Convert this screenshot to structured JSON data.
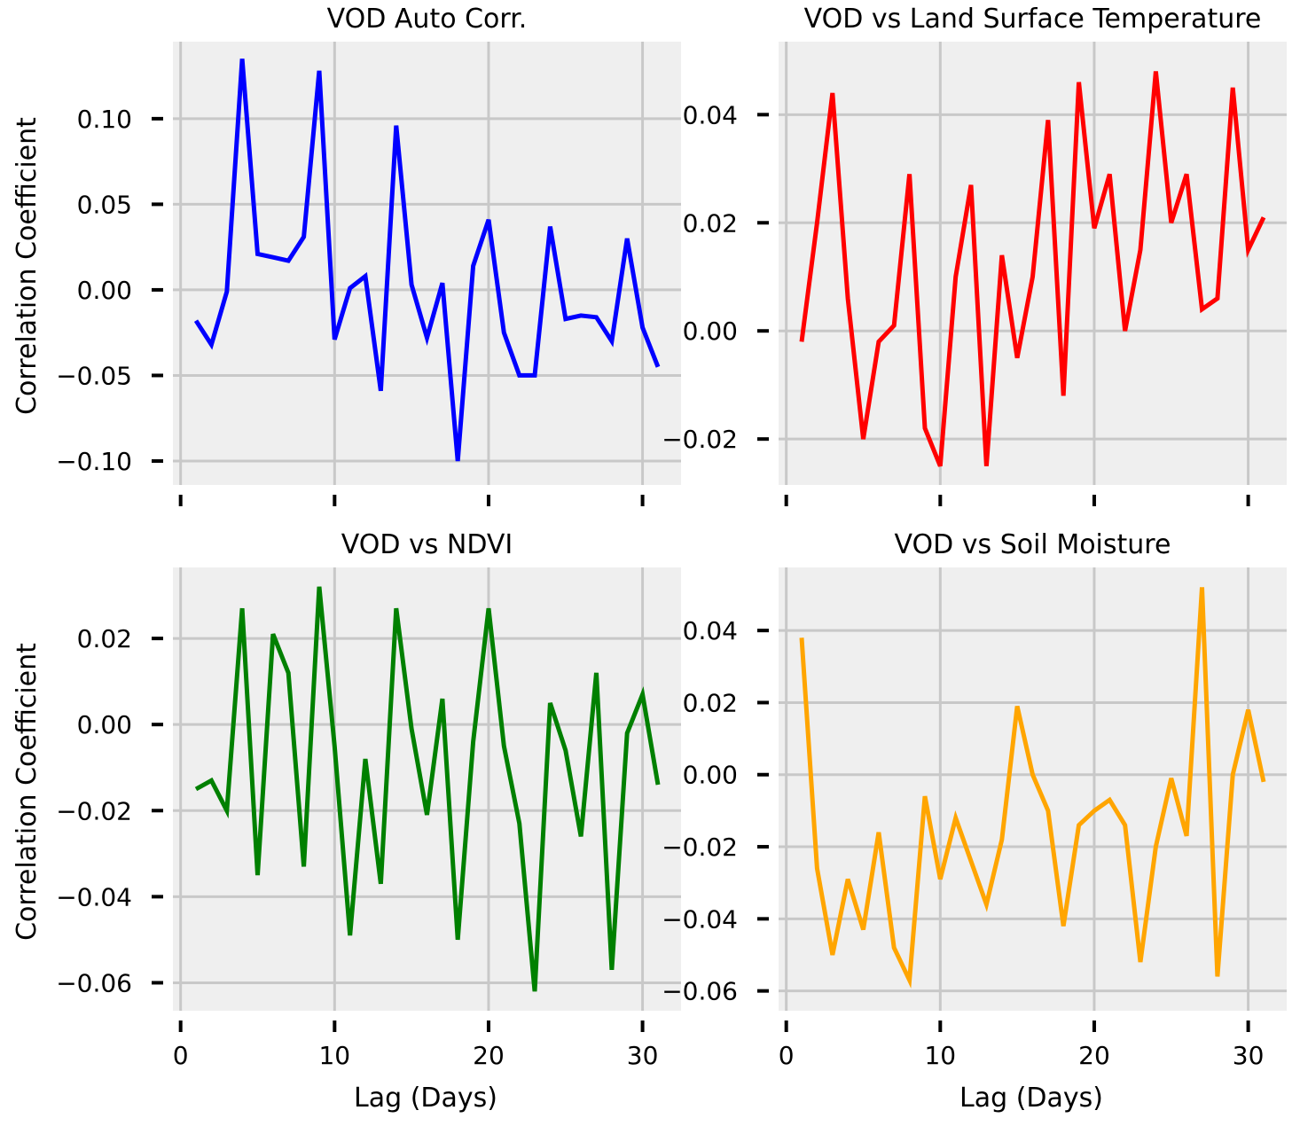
{
  "xlabel": "Lag (Days)",
  "ylabel": "Correlation Coefficient",
  "chart_data": [
    {
      "type": "line",
      "title": "VOD Auto Corr.",
      "xlabel": "",
      "ylabel": "Correlation Coefficient",
      "xlim": [
        -0.5,
        32.5
      ],
      "ylim": [
        -0.114,
        0.145
      ],
      "xticks": [
        0,
        10,
        20,
        30
      ],
      "show_xtick_labels": false,
      "yticks": [
        -0.1,
        -0.05,
        0.0,
        0.05,
        0.1
      ],
      "ytick_labels": [
        "−0.10",
        "−0.05",
        "0.00",
        "0.05",
        "0.10"
      ],
      "grid": true,
      "color": "#0000ff",
      "x": [
        1,
        2,
        3,
        4,
        5,
        6,
        7,
        8,
        9,
        10,
        11,
        12,
        13,
        14,
        15,
        16,
        17,
        18,
        19,
        20,
        21,
        22,
        23,
        24,
        25,
        26,
        27,
        28,
        29,
        30,
        31
      ],
      "values": [
        -0.018,
        -0.032,
        -0.001,
        0.135,
        0.021,
        0.019,
        0.017,
        0.031,
        0.128,
        -0.029,
        0.001,
        0.008,
        -0.059,
        0.096,
        0.003,
        -0.028,
        0.004,
        -0.1,
        0.014,
        0.041,
        -0.025,
        -0.05,
        -0.05,
        0.037,
        -0.017,
        -0.015,
        -0.016,
        -0.03,
        0.03,
        -0.022,
        -0.045
      ]
    },
    {
      "type": "line",
      "title": "VOD vs Land Surface Temperature",
      "xlabel": "",
      "ylabel": "",
      "xlim": [
        -0.5,
        32.5
      ],
      "ylim": [
        -0.0285,
        0.0535
      ],
      "xticks": [
        0,
        10,
        20,
        30
      ],
      "show_xtick_labels": false,
      "yticks": [
        -0.02,
        0.0,
        0.02,
        0.04
      ],
      "ytick_labels": [
        "−0.02",
        "0.00",
        "0.02",
        "0.04"
      ],
      "grid": true,
      "color": "#ff0000",
      "x": [
        1,
        2,
        3,
        4,
        5,
        6,
        7,
        8,
        9,
        10,
        11,
        12,
        13,
        14,
        15,
        16,
        17,
        18,
        19,
        20,
        21,
        22,
        23,
        24,
        25,
        26,
        27,
        28,
        29,
        30,
        31
      ],
      "values": [
        -0.002,
        0.02,
        0.044,
        0.006,
        -0.02,
        -0.002,
        0.001,
        0.029,
        -0.018,
        -0.025,
        0.01,
        0.027,
        -0.025,
        0.014,
        -0.005,
        0.01,
        0.039,
        -0.012,
        0.046,
        0.019,
        0.029,
        0.0,
        0.015,
        0.048,
        0.02,
        0.029,
        0.004,
        0.006,
        0.045,
        0.015,
        0.021
      ]
    },
    {
      "type": "line",
      "title": "VOD vs NDVI",
      "xlabel": "Lag (Days)",
      "ylabel": "Correlation Coefficient",
      "xlim": [
        -0.5,
        32.5
      ],
      "ylim": [
        -0.0665,
        0.0365
      ],
      "xticks": [
        0,
        10,
        20,
        30
      ],
      "xtick_labels": [
        "0",
        "10",
        "20",
        "30"
      ],
      "show_xtick_labels": true,
      "yticks": [
        -0.06,
        -0.04,
        -0.02,
        0.0,
        0.02
      ],
      "ytick_labels": [
        "−0.06",
        "−0.04",
        "−0.02",
        "0.00",
        "0.02"
      ],
      "grid": true,
      "color": "#008000",
      "x": [
        1,
        2,
        3,
        4,
        5,
        6,
        7,
        8,
        9,
        10,
        11,
        12,
        13,
        14,
        15,
        16,
        17,
        18,
        19,
        20,
        21,
        22,
        23,
        24,
        25,
        26,
        27,
        28,
        29,
        30,
        31
      ],
      "values": [
        -0.015,
        -0.013,
        -0.02,
        0.027,
        -0.035,
        0.021,
        0.012,
        -0.033,
        0.032,
        -0.005,
        -0.049,
        -0.008,
        -0.037,
        0.027,
        -0.001,
        -0.021,
        0.006,
        -0.05,
        -0.004,
        0.027,
        -0.005,
        -0.023,
        -0.062,
        0.005,
        -0.006,
        -0.026,
        0.012,
        -0.057,
        -0.002,
        0.007,
        -0.014
      ]
    },
    {
      "type": "line",
      "title": "VOD vs Soil Moisture",
      "xlabel": "Lag (Days)",
      "ylabel": "",
      "xlim": [
        -0.5,
        32.5
      ],
      "ylim": [
        -0.0655,
        0.0575
      ],
      "xticks": [
        0,
        10,
        20,
        30
      ],
      "xtick_labels": [
        "0",
        "10",
        "20",
        "30"
      ],
      "show_xtick_labels": true,
      "yticks": [
        -0.06,
        -0.04,
        -0.02,
        0.0,
        0.02,
        0.04
      ],
      "ytick_labels": [
        "−0.06",
        "−0.04",
        "−0.02",
        "0.00",
        "0.02",
        "0.04"
      ],
      "grid": true,
      "color": "#ffa500",
      "x": [
        1,
        2,
        3,
        4,
        5,
        6,
        7,
        8,
        9,
        10,
        11,
        12,
        13,
        14,
        15,
        16,
        17,
        18,
        19,
        20,
        21,
        22,
        23,
        24,
        25,
        26,
        27,
        28,
        29,
        30,
        31
      ],
      "values": [
        0.038,
        -0.026,
        -0.05,
        -0.029,
        -0.043,
        -0.016,
        -0.048,
        -0.057,
        -0.006,
        -0.029,
        -0.012,
        -0.024,
        -0.036,
        -0.018,
        0.019,
        0.0,
        -0.01,
        -0.042,
        -0.014,
        -0.01,
        -0.007,
        -0.014,
        -0.052,
        -0.02,
        -0.001,
        -0.017,
        0.052,
        -0.056,
        0.0,
        0.018,
        -0.002
      ]
    }
  ]
}
